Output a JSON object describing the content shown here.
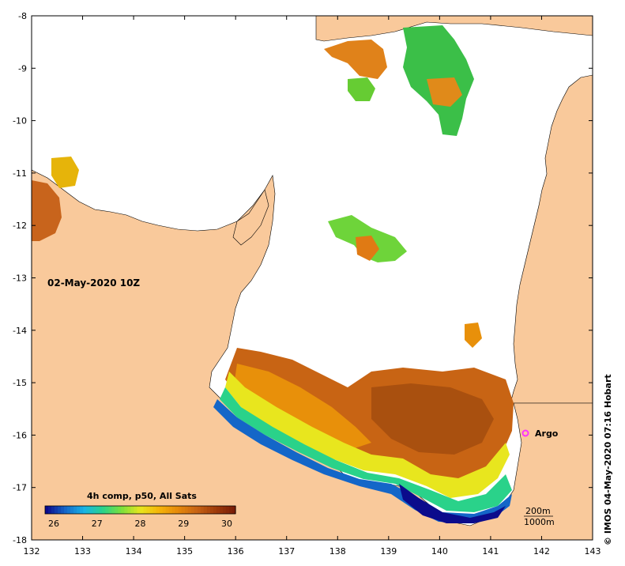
{
  "map": {
    "x_ticks": [
      "132",
      "133",
      "134",
      "135",
      "136",
      "137",
      "138",
      "139",
      "140",
      "141",
      "142",
      "143"
    ],
    "y_ticks": [
      "-8",
      "-9",
      "-10",
      "-11",
      "-12",
      "-13",
      "-14",
      "-15",
      "-16",
      "-17",
      "-18"
    ],
    "date_label": "02-May-2020 10Z",
    "colorbar_title": "4h comp, p50, All Sats",
    "colorbar_ticks": [
      "26",
      "27",
      "28",
      "29",
      "30"
    ],
    "colorbar_range": [
      25.8,
      30.2
    ],
    "argo_label": "Argo",
    "scale_labels": [
      "200m",
      "1000m"
    ],
    "credit": "© IMOS 04-May-2020 07:16 Hobart",
    "colors": {
      "land": "#f9c99b",
      "sea": "#ffffff",
      "argo_marker": "#ff33ff"
    },
    "colormap": [
      "#0b0b8c",
      "#1466c8",
      "#19b4e6",
      "#2ad28a",
      "#7be03c",
      "#e8e61e",
      "#f5b40a",
      "#e68a0a",
      "#c86414",
      "#a03c0a",
      "#7a1e08"
    ]
  }
}
